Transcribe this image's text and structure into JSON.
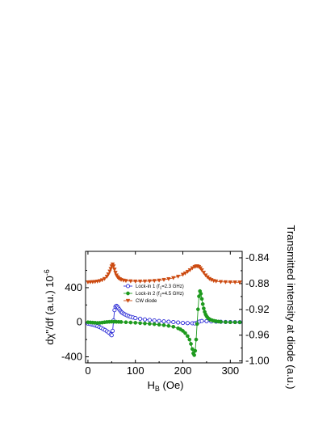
{
  "chart_data": {
    "type": "line",
    "x_axis": {
      "label_main": "H",
      "label_sub": "B",
      "label_rest": " (Oe)",
      "range": [
        -5,
        325
      ],
      "ticks": [
        0,
        100,
        200,
        300
      ],
      "tick_labels": [
        "0",
        "100",
        "200",
        "300"
      ]
    },
    "y_left": {
      "label": "dχ''/df (a.u.) 10",
      "label_exp": "-6",
      "range": [
        -470,
        820
      ],
      "ticks": [
        -400,
        0,
        400
      ],
      "tick_labels": [
        "-400",
        "0",
        "400"
      ]
    },
    "y_right": {
      "label": "Transmitted intensity at diode (a.u.)",
      "range": [
        -1.003,
        -0.83
      ],
      "ticks": [
        -1.0,
        -0.96,
        -0.92,
        -0.88,
        -0.84
      ],
      "tick_labels": [
        "-1.00",
        "-0.96",
        "-0.92",
        "-0.88",
        "-0.84"
      ]
    },
    "legend": {
      "placement": "center",
      "items": [
        {
          "main": "Lock-in 1 (f",
          "sub": "1",
          "rest": "=2.3 GHz)"
        },
        {
          "main": "Lock-in 2 (f",
          "sub": "2",
          "rest": "=4.5 GHz)"
        },
        {
          "main": "CW diode",
          "sub": "",
          "rest": ""
        }
      ]
    },
    "colors": {
      "lockin1": "#2a2ad6",
      "lockin2": "#1e9a1e",
      "diode": "#cc4a10"
    },
    "series": [
      {
        "axis": "left",
        "marker": "open-circle",
        "x": [
          0,
          4,
          8,
          12,
          16,
          20,
          24,
          28,
          32,
          36,
          40,
          44,
          48,
          50,
          52,
          54,
          56,
          58,
          60,
          62,
          64,
          66,
          68,
          70,
          72,
          75,
          78,
          82,
          86,
          90,
          95,
          100,
          110,
          120,
          130,
          140,
          150,
          160,
          170,
          180,
          190,
          200,
          210,
          220,
          225,
          230,
          235,
          240,
          250,
          260,
          270,
          280,
          290,
          300,
          310,
          320
        ],
        "y": [
          -15,
          -20,
          -25,
          -30,
          -38,
          -45,
          -55,
          -65,
          -78,
          -90,
          -105,
          -120,
          -140,
          -150,
          -100,
          20,
          140,
          180,
          190,
          180,
          165,
          150,
          135,
          120,
          110,
          100,
          90,
          80,
          70,
          62,
          55,
          48,
          40,
          32,
          26,
          20,
          15,
          10,
          6,
          2,
          -3,
          -8,
          -10,
          -12,
          -14,
          -5,
          8,
          14,
          12,
          9,
          7,
          5,
          3,
          2,
          1,
          0
        ]
      },
      {
        "axis": "left",
        "marker": "filled-circle",
        "x": [
          0,
          5,
          10,
          15,
          20,
          25,
          30,
          35,
          40,
          45,
          50,
          55,
          60,
          65,
          70,
          80,
          90,
          100,
          110,
          120,
          130,
          140,
          150,
          160,
          170,
          180,
          190,
          195,
          200,
          205,
          210,
          214,
          217,
          220,
          222,
          224,
          226,
          228,
          230,
          232,
          234,
          236,
          238,
          240,
          242,
          244,
          246,
          248,
          250,
          252,
          255,
          258,
          262,
          266,
          270,
          275,
          280,
          290,
          300,
          310,
          320
        ],
        "y": [
          0,
          -2,
          -4,
          -6,
          -8,
          -7,
          -4,
          0,
          3,
          5,
          7,
          6,
          5,
          4,
          3,
          0,
          -3,
          -6,
          -10,
          -14,
          -18,
          -22,
          -28,
          -34,
          -42,
          -52,
          -70,
          -82,
          -100,
          -125,
          -160,
          -200,
          -250,
          -310,
          -360,
          -380,
          -330,
          -200,
          -20,
          150,
          300,
          360,
          330,
          270,
          210,
          160,
          120,
          90,
          70,
          55,
          40,
          30,
          22,
          16,
          12,
          8,
          5,
          2,
          0,
          0,
          0
        ]
      },
      {
        "axis": "right",
        "marker": "filled-triangle-down",
        "x": [
          0,
          5,
          10,
          15,
          20,
          25,
          30,
          35,
          40,
          43,
          46,
          48,
          50,
          52,
          54,
          56,
          58,
          60,
          62,
          64,
          67,
          70,
          75,
          80,
          90,
          100,
          110,
          120,
          130,
          140,
          150,
          160,
          170,
          180,
          190,
          200,
          205,
          210,
          215,
          220,
          225,
          228,
          231,
          234,
          237,
          240,
          244,
          248,
          252,
          256,
          260,
          265,
          270,
          280,
          290,
          300,
          310,
          320
        ],
        "y": [
          -0.8778,
          -0.8776,
          -0.8774,
          -0.8771,
          -0.8766,
          -0.8758,
          -0.8745,
          -0.8725,
          -0.869,
          -0.8655,
          -0.861,
          -0.857,
          -0.853,
          -0.85,
          -0.853,
          -0.858,
          -0.863,
          -0.867,
          -0.8695,
          -0.8712,
          -0.8728,
          -0.874,
          -0.875,
          -0.8756,
          -0.8762,
          -0.8765,
          -0.8765,
          -0.8764,
          -0.8761,
          -0.8756,
          -0.875,
          -0.874,
          -0.8728,
          -0.8712,
          -0.869,
          -0.866,
          -0.864,
          -0.8615,
          -0.859,
          -0.856,
          -0.854,
          -0.853,
          -0.853,
          -0.854,
          -0.856,
          -0.859,
          -0.863,
          -0.867,
          -0.87,
          -0.8725,
          -0.8742,
          -0.8756,
          -0.8764,
          -0.8772,
          -0.8776,
          -0.8778,
          -0.8779,
          -0.878
        ]
      }
    ]
  }
}
